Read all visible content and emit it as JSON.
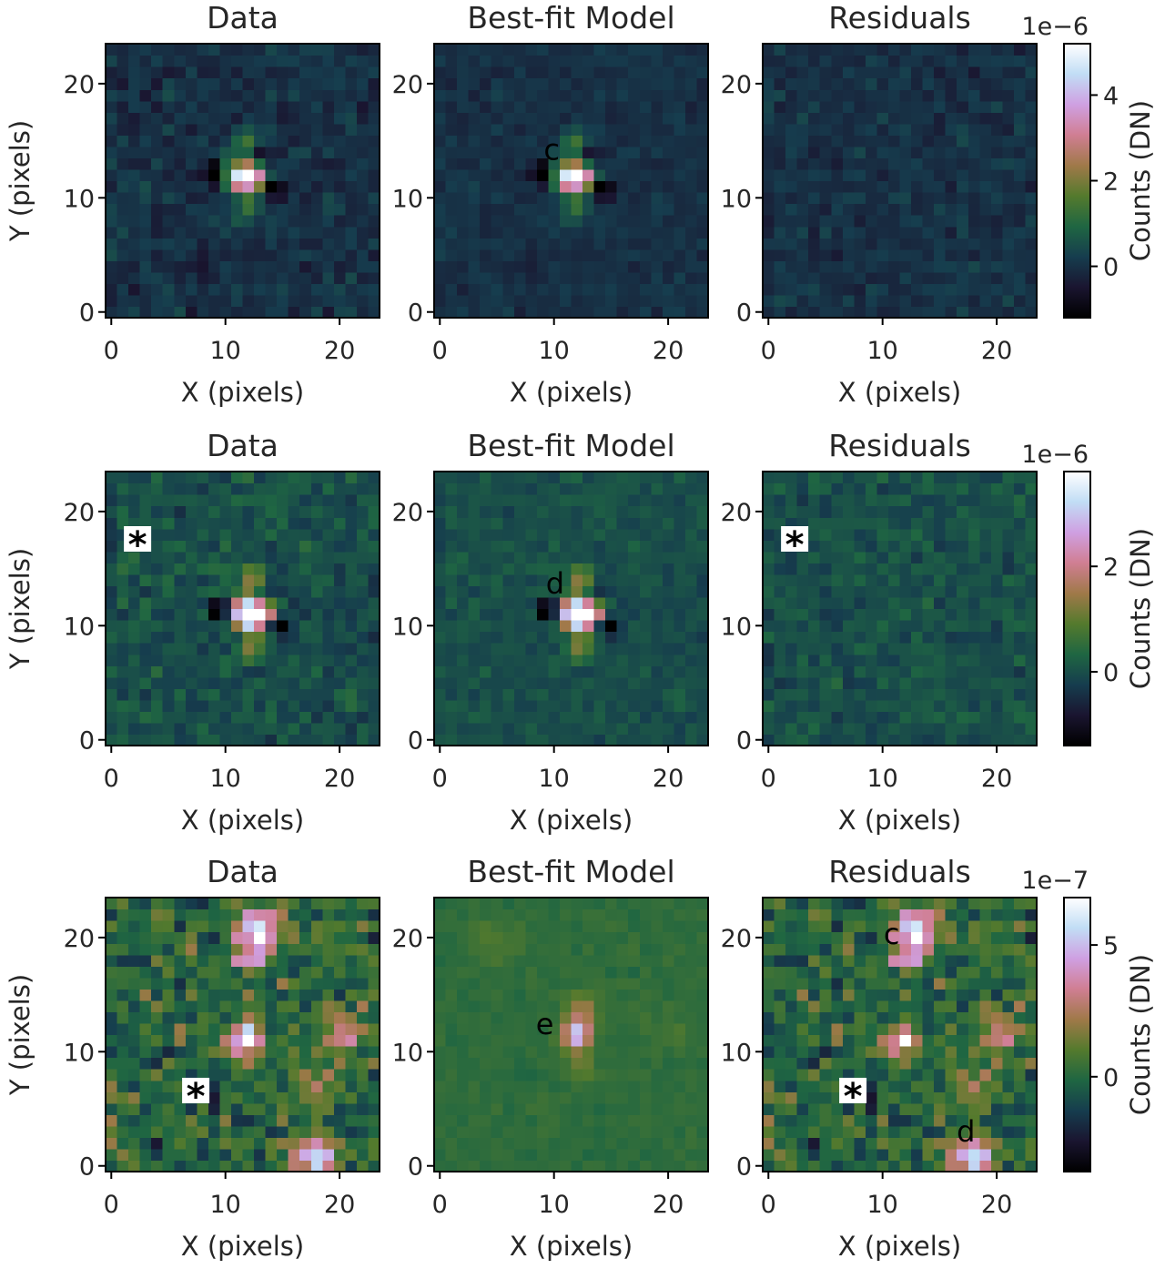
{
  "figure": {
    "colormap": "cubehelix",
    "colormap_stops": [
      "#000000",
      "#1a1530",
      "#163d4e",
      "#1f6642",
      "#547a2d",
      "#a07949",
      "#d07e93",
      "#cfa0e2",
      "#c1ddf5",
      "#ffffff"
    ]
  },
  "chart_data": [
    {
      "type": "heatmap",
      "row": 1,
      "title": "Data",
      "xlabel": "X (pixels)",
      "ylabel": "Y (pixels)",
      "xticks": [
        "0",
        "10",
        "20"
      ],
      "yticks": [
        "0",
        "10",
        "20"
      ],
      "xlim": [
        -0.5,
        23.5
      ],
      "ylim": [
        -0.5,
        23.5
      ],
      "annotations": []
    },
    {
      "type": "heatmap",
      "row": 1,
      "title": "Best-fit Model",
      "xlabel": "X (pixels)",
      "ylabel": "",
      "xticks": [
        "0",
        "10",
        "20"
      ],
      "yticks": [
        "0",
        "10",
        "20"
      ],
      "xlim": [
        -0.5,
        23.5
      ],
      "ylim": [
        -0.5,
        23.5
      ],
      "annotations": [
        {
          "text": "c",
          "x": 9.8,
          "y": 14.2
        }
      ]
    },
    {
      "type": "heatmap",
      "row": 1,
      "title": "Residuals",
      "xlabel": "X (pixels)",
      "ylabel": "",
      "xticks": [
        "0",
        "10",
        "20"
      ],
      "yticks": [
        "0",
        "10",
        "20"
      ],
      "xlim": [
        -0.5,
        23.5
      ],
      "ylim": [
        -0.5,
        23.5
      ],
      "annotations": []
    },
    {
      "type": "heatmap",
      "row": 2,
      "title": "Data",
      "xlabel": "X (pixels)",
      "ylabel": "Y (pixels)",
      "xticks": [
        "0",
        "10",
        "20"
      ],
      "yticks": [
        "0",
        "10",
        "20"
      ],
      "xlim": [
        -0.5,
        23.5
      ],
      "ylim": [
        -0.5,
        23.5
      ],
      "annotations": [
        {
          "text": "*",
          "x": 2.3,
          "y": 17.6,
          "boxed": true
        }
      ]
    },
    {
      "type": "heatmap",
      "row": 2,
      "title": "Best-fit Model",
      "xlabel": "X (pixels)",
      "ylabel": "",
      "xticks": [
        "0",
        "10",
        "20"
      ],
      "yticks": [
        "0",
        "10",
        "20"
      ],
      "xlim": [
        -0.5,
        23.5
      ],
      "ylim": [
        -0.5,
        23.5
      ],
      "annotations": [
        {
          "text": "d",
          "x": 10.1,
          "y": 13.7
        }
      ]
    },
    {
      "type": "heatmap",
      "row": 2,
      "title": "Residuals",
      "xlabel": "X (pixels)",
      "ylabel": "",
      "xticks": [
        "0",
        "10",
        "20"
      ],
      "yticks": [
        "0",
        "10",
        "20"
      ],
      "xlim": [
        -0.5,
        23.5
      ],
      "ylim": [
        -0.5,
        23.5
      ],
      "annotations": [
        {
          "text": "*",
          "x": 2.3,
          "y": 17.6,
          "boxed": true
        }
      ]
    },
    {
      "type": "heatmap",
      "row": 3,
      "title": "Data",
      "xlabel": "X (pixels)",
      "ylabel": "Y (pixels)",
      "xticks": [
        "0",
        "10",
        "20"
      ],
      "yticks": [
        "0",
        "10",
        "20"
      ],
      "xlim": [
        -0.5,
        23.5
      ],
      "ylim": [
        -0.5,
        23.5
      ],
      "annotations": [
        {
          "text": "*",
          "x": 7.4,
          "y": 6.6,
          "boxed": true
        }
      ]
    },
    {
      "type": "heatmap",
      "row": 3,
      "title": "Best-fit Model",
      "xlabel": "X (pixels)",
      "ylabel": "",
      "xticks": [
        "0",
        "10",
        "20"
      ],
      "yticks": [
        "0",
        "10",
        "20"
      ],
      "xlim": [
        -0.5,
        23.5
      ],
      "ylim": [
        -0.5,
        23.5
      ],
      "annotations": [
        {
          "text": "e",
          "x": 9.2,
          "y": 12.4
        }
      ]
    },
    {
      "type": "heatmap",
      "row": 3,
      "title": "Residuals",
      "xlabel": "X (pixels)",
      "ylabel": "",
      "xticks": [
        "0",
        "10",
        "20"
      ],
      "yticks": [
        "0",
        "10",
        "20"
      ],
      "xlim": [
        -0.5,
        23.5
      ],
      "ylim": [
        -0.5,
        23.5
      ],
      "annotations": [
        {
          "text": "c",
          "x": 10.8,
          "y": 20.3
        },
        {
          "text": "*",
          "x": 7.4,
          "y": 6.6,
          "boxed": true
        },
        {
          "text": "d",
          "x": 17.3,
          "y": 3.0
        }
      ]
    }
  ],
  "colorbars": [
    {
      "row": 1,
      "label": "Counts (DN)",
      "scale_text": "1e−6",
      "ticks": [
        "0",
        "2",
        "4"
      ],
      "tick_values": [
        0,
        2,
        4
      ],
      "range": [
        -1.2,
        5.2
      ]
    },
    {
      "row": 2,
      "label": "Counts (DN)",
      "scale_text": "1e−6",
      "ticks": [
        "0",
        "2"
      ],
      "tick_values": [
        0,
        2
      ],
      "range": [
        -1.4,
        3.8
      ]
    },
    {
      "row": 3,
      "label": "Counts (DN)",
      "scale_text": "1e−7",
      "ticks": [
        "0",
        "5"
      ],
      "tick_values": [
        0,
        5
      ],
      "range": [
        -3.6,
        6.8
      ]
    }
  ]
}
